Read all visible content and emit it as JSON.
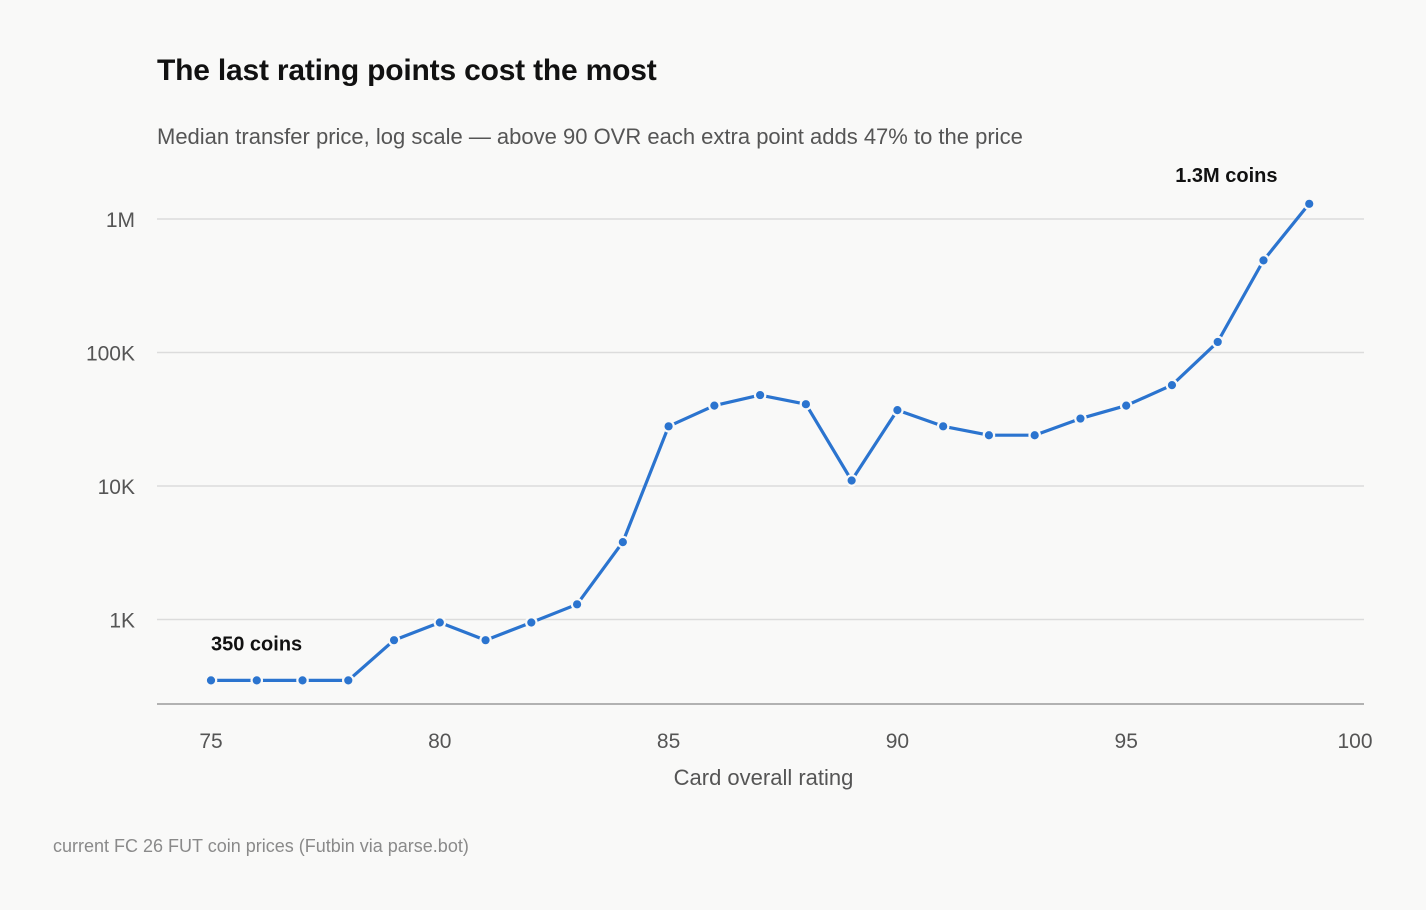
{
  "chart_data": {
    "type": "line",
    "title": "The last rating points cost the most",
    "subtitle": "Median transfer price, log scale — above 90 OVR each extra point adds 47% to the price",
    "xlabel": "Card overall rating",
    "ylabel": "",
    "source": "current FC 26 FUT coin prices (Futbin via parse.bot)",
    "y_scale": "log",
    "xlim": [
      74,
      100
    ],
    "ylim": [
      240,
      1500000
    ],
    "x_ticks": [
      75,
      80,
      85,
      90,
      95,
      100
    ],
    "x_tick_labels": [
      "75",
      "80",
      "85",
      "90",
      "95",
      "100"
    ],
    "y_ticks": [
      1000,
      10000,
      100000,
      1000000
    ],
    "y_tick_labels": [
      "1K",
      "10K",
      "100K",
      "1M"
    ],
    "grid": true,
    "color": "#2b74cf",
    "series": [
      {
        "x": [
          75,
          76,
          77,
          78,
          79,
          80,
          81,
          82,
          83,
          84,
          85,
          86,
          87,
          88,
          89,
          90,
          91,
          92,
          93,
          94,
          95,
          96,
          97,
          98,
          99
        ],
        "y": [
          350,
          350,
          350,
          350,
          700,
          950,
          700,
          950,
          1300,
          3800,
          28000,
          40000,
          48000,
          41000,
          11000,
          37000,
          28000,
          24000,
          24000,
          32000,
          40000,
          57000,
          120000,
          490000,
          1300000
        ]
      }
    ],
    "annotations": [
      {
        "text": "350 coins",
        "x": 75,
        "y": 350
      },
      {
        "text": "1.3M coins",
        "x": 99,
        "y": 1300000
      }
    ]
  }
}
